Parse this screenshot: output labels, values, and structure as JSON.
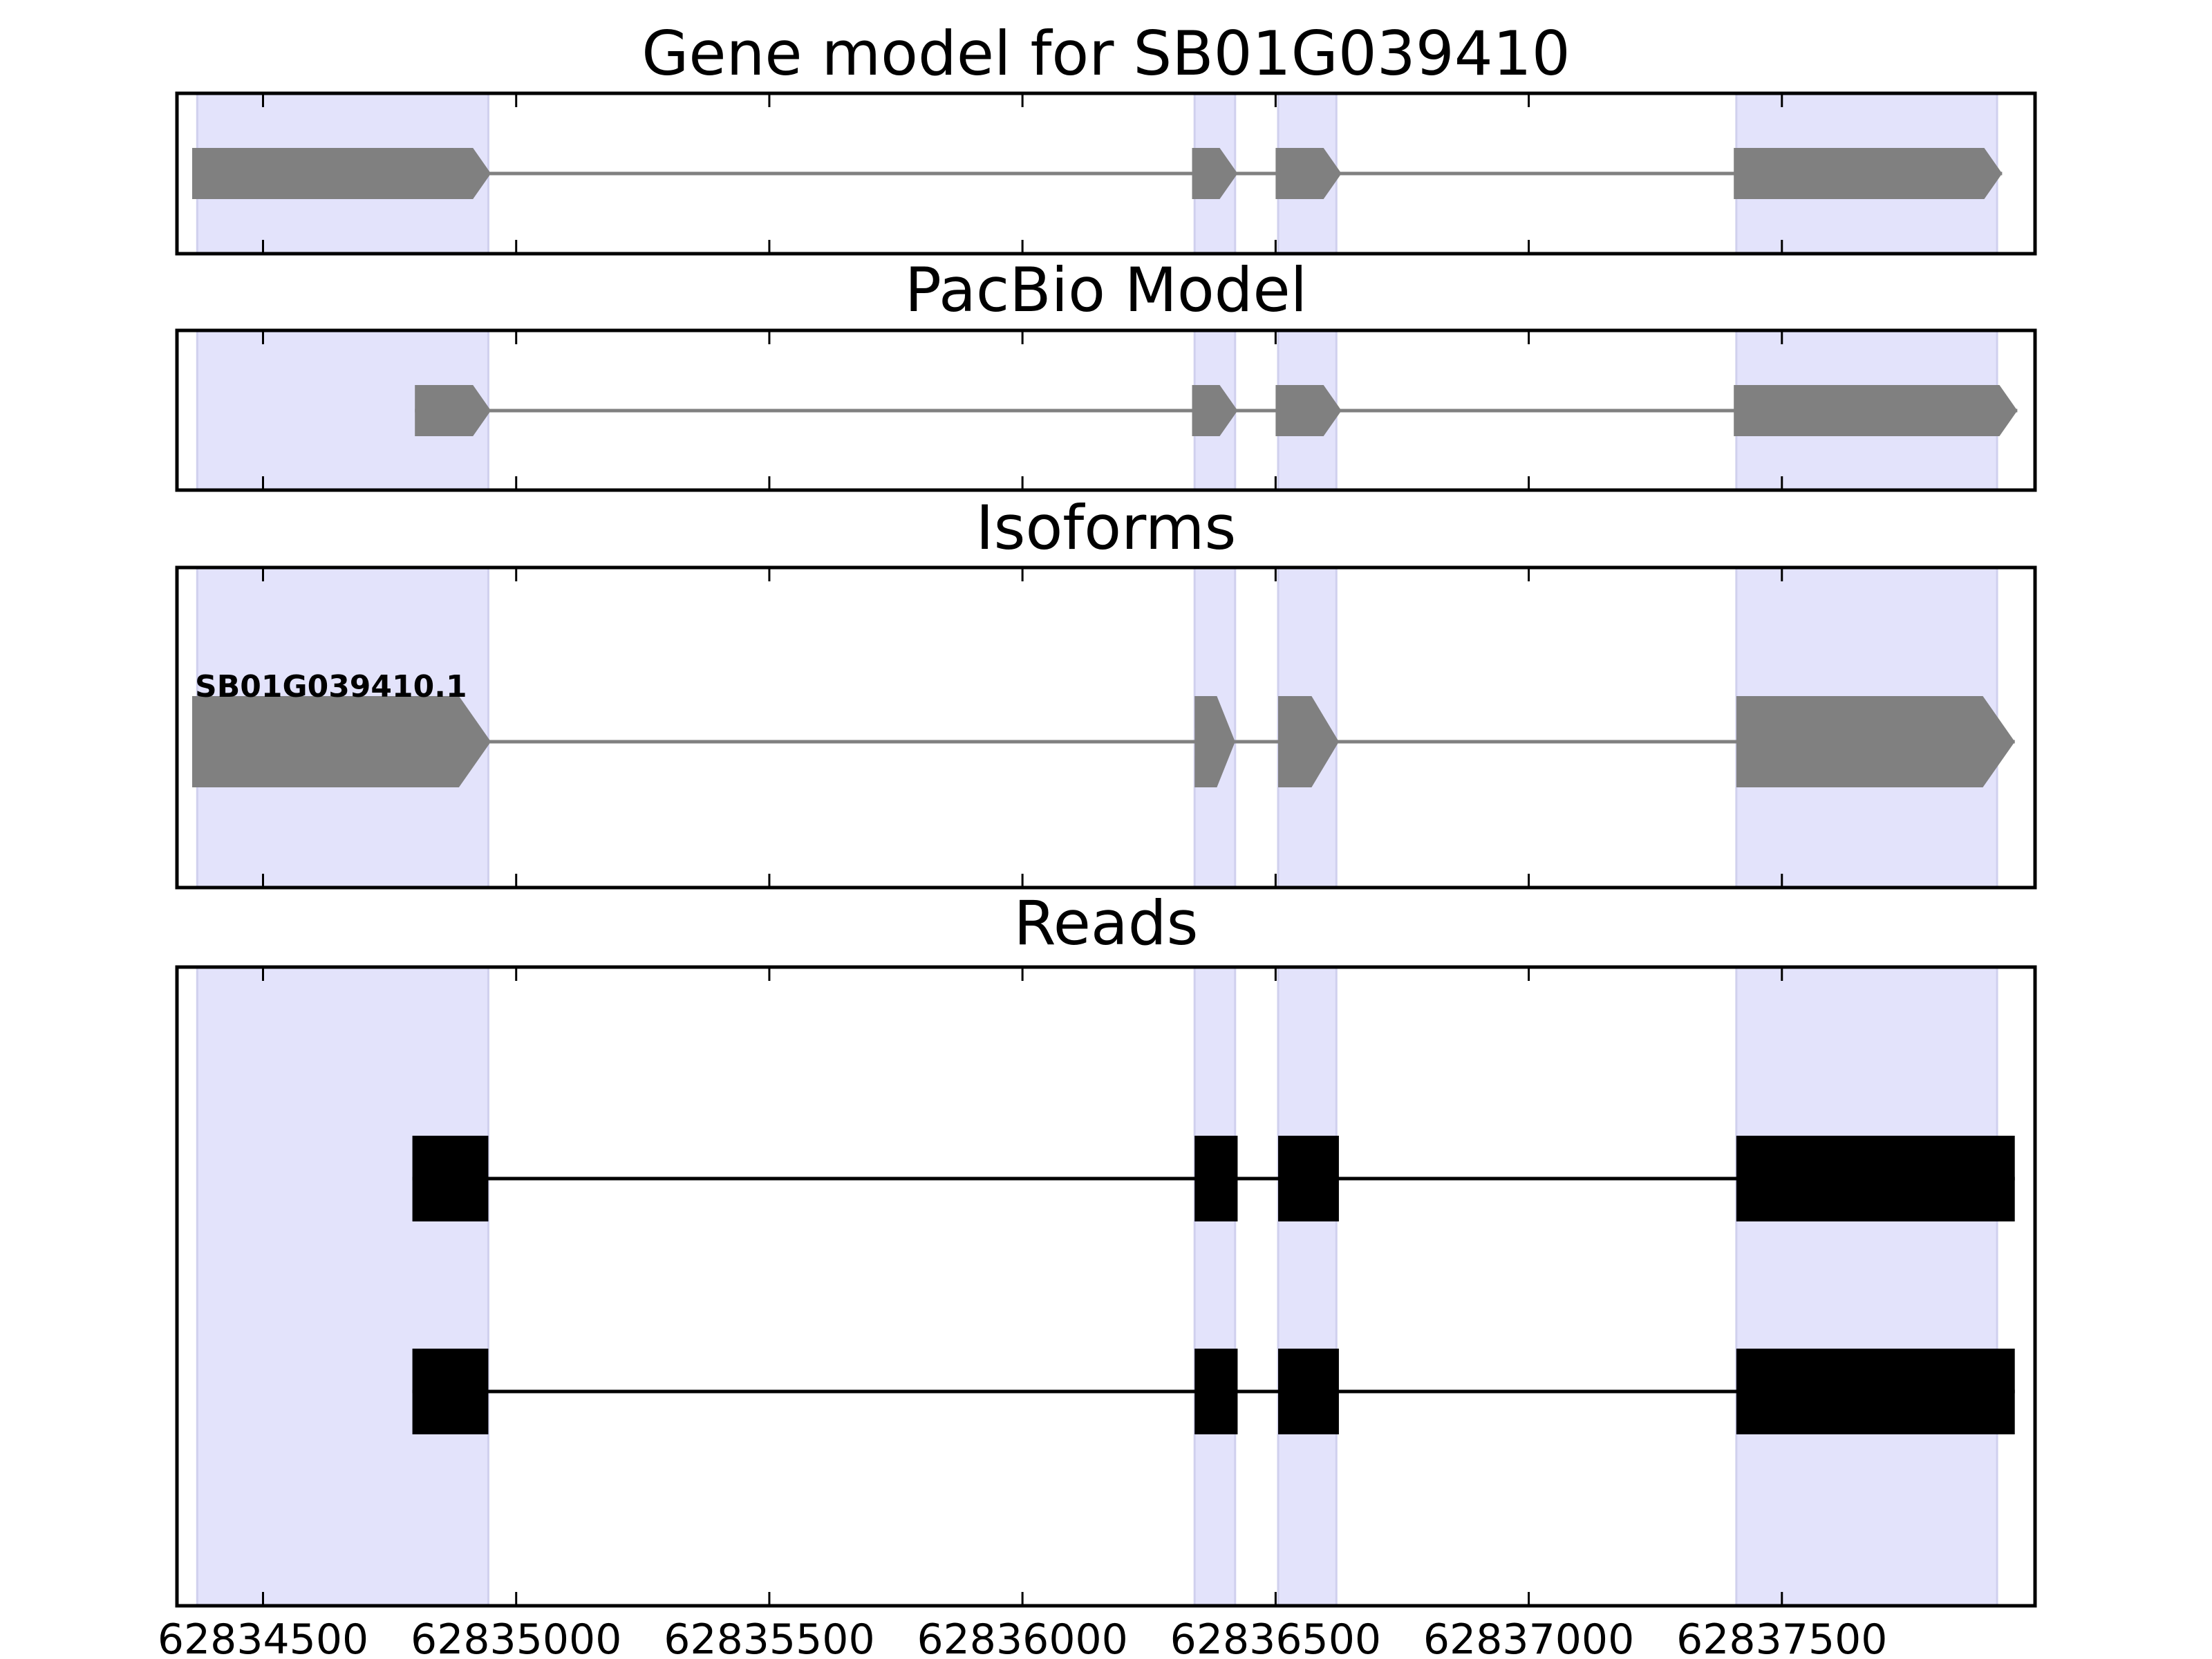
{
  "chart_data": {
    "type": "gene-track",
    "xlim": [
      62834330,
      62838000
    ],
    "x_ticks": [
      62834500,
      62835000,
      62835500,
      62836000,
      62836500,
      62837000,
      62837500
    ],
    "x_tick_labels": [
      "62834500",
      "62835000",
      "62835500",
      "62836000",
      "62836500",
      "62837000",
      "62837500"
    ],
    "highlight_regions": [
      [
        62834370,
        62834945
      ],
      [
        62836340,
        62836420
      ],
      [
        62836505,
        62836620
      ],
      [
        62837410,
        62837925
      ]
    ],
    "panels": [
      {
        "title": "Gene model for SB01G039410",
        "kind": "model",
        "span": [
          62834360,
          62837935
        ],
        "exons": [
          [
            62834360,
            62834950
          ],
          [
            62836335,
            62836425
          ],
          [
            62836500,
            62836630
          ],
          [
            62837405,
            62837935
          ]
        ]
      },
      {
        "title": "PacBio Model",
        "kind": "model",
        "span": [
          62834800,
          62837965
        ],
        "exons": [
          [
            62834800,
            62834950
          ],
          [
            62836335,
            62836425
          ],
          [
            62836500,
            62836630
          ],
          [
            62837405,
            62837965
          ]
        ]
      },
      {
        "title": "Isoforms",
        "kind": "model",
        "span": [
          62834360,
          62837960
        ],
        "label": "SB01G039410.1",
        "exons": [
          [
            62834360,
            62834950
          ],
          [
            62836340,
            62836420
          ],
          [
            62836505,
            62836625
          ],
          [
            62837410,
            62837960
          ]
        ]
      },
      {
        "title": "Reads",
        "kind": "reads",
        "reads": [
          {
            "span": [
              62834795,
              62837960
            ],
            "exons": [
              [
                62834795,
                62834945
              ],
              [
                62836340,
                62836425
              ],
              [
                62836505,
                62836625
              ],
              [
                62837410,
                62837960
              ]
            ]
          },
          {
            "span": [
              62834795,
              62837960
            ],
            "exons": [
              [
                62834795,
                62834945
              ],
              [
                62836340,
                62836425
              ],
              [
                62836505,
                62836625
              ],
              [
                62837410,
                62837960
              ]
            ]
          }
        ]
      }
    ],
    "colors": {
      "highlight": "#e3e3fb",
      "model": "#808080",
      "reads": "#000000"
    }
  }
}
